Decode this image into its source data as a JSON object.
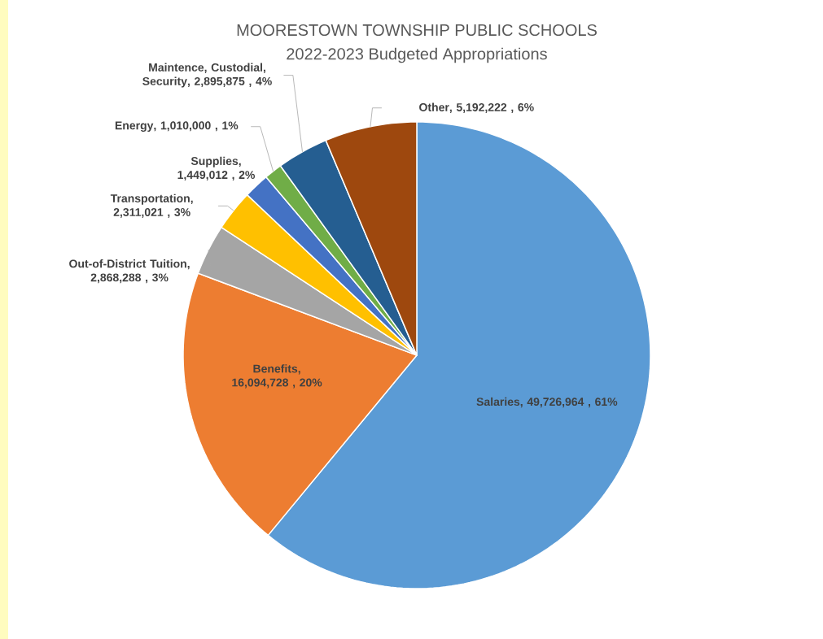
{
  "chart_data": {
    "type": "pie",
    "title": "MOORESTOWN TOWNSHIP PUBLIC SCHOOLS",
    "subtitle": "2022-2023 Budgeted Appropriations",
    "categories": [
      "Salaries",
      "Benefits",
      "Out-of-District Tuition",
      "Transportation",
      "Supplies",
      "Energy",
      "Maintence, Custodial, Security",
      "Other"
    ],
    "values": [
      49726964,
      16094728,
      2868288,
      2311021,
      1449012,
      1010000,
      2895875,
      5192222
    ],
    "colors": [
      "#5b9bd5",
      "#ed7d31",
      "#a5a5a5",
      "#ffc000",
      "#4472c4",
      "#70ad47",
      "#255e91",
      "#9e480e"
    ],
    "value_labels": [
      ", 49,726,964 , 61%",
      ", 16,094,728 , 20%",
      ", 2,868,288 , 3%",
      ", 2,311,021 , 3%",
      ", 1,449,012 , 2%",
      ", 1,010,000 , 1%",
      ", 2,895,875 , 4%",
      ", 5,192,222 , 6%"
    ]
  }
}
